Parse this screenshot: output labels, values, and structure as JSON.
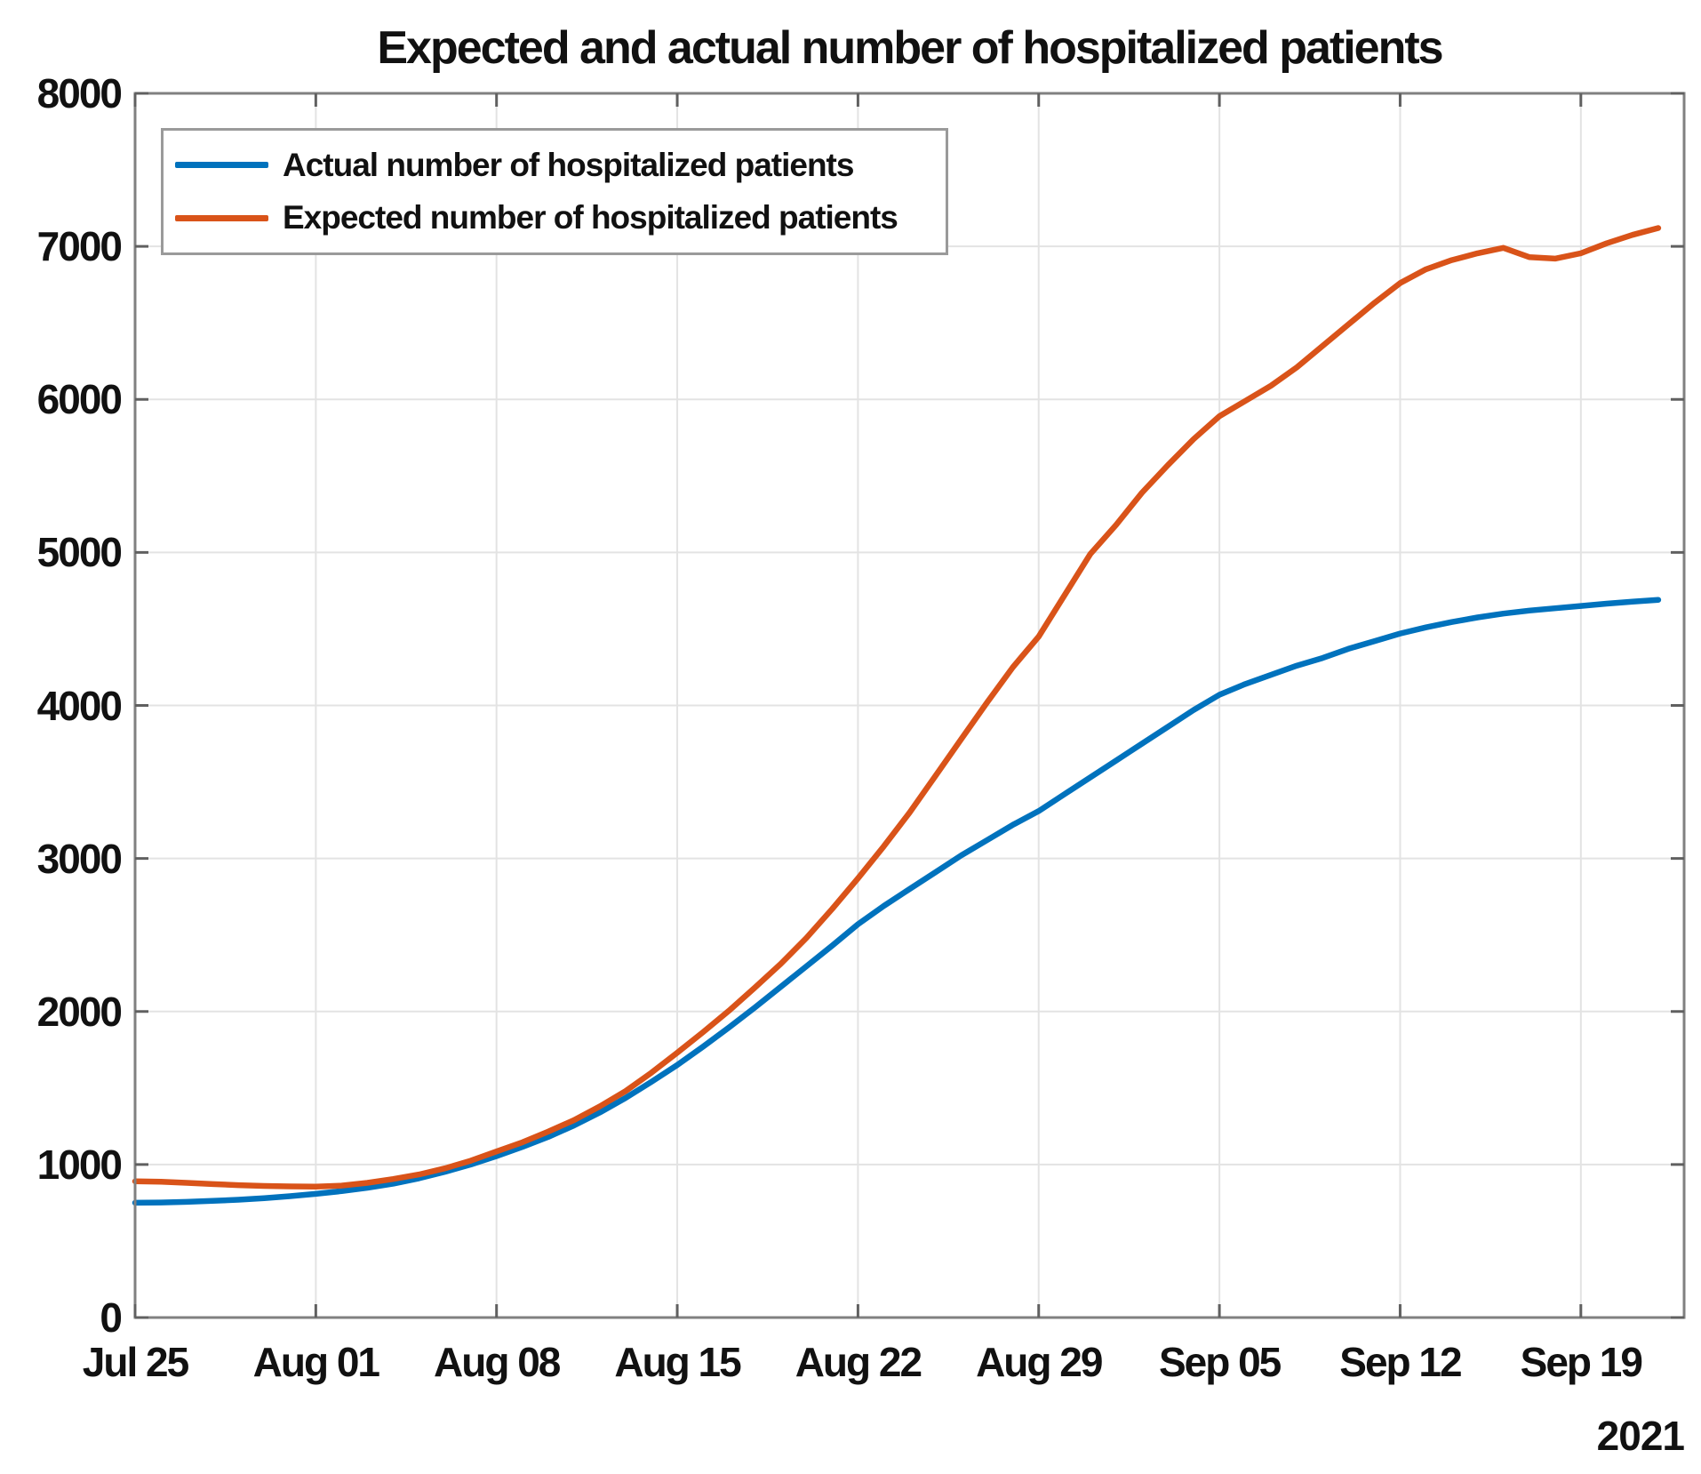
{
  "chart_data": {
    "type": "line",
    "title": "Expected and actual number of hospitalized patients",
    "grid": true,
    "legend": {
      "position": "top-left"
    },
    "x_axis": {
      "tick_labels": [
        "Jul 25",
        "Aug 01",
        "Aug 08",
        "Aug 15",
        "Aug 22",
        "Aug 29",
        "Sep 05",
        "Sep 12",
        "Sep 19"
      ],
      "tick_days": [
        0,
        7,
        14,
        21,
        28,
        35,
        42,
        49,
        56
      ],
      "year_label": "2021",
      "start_date": "Jul 25, 2021",
      "interval": "daily",
      "domain_days": [
        0,
        60
      ]
    },
    "y_axis": {
      "tick_labels": [
        "0",
        "1000",
        "2000",
        "3000",
        "4000",
        "5000",
        "6000",
        "7000",
        "8000"
      ],
      "tick_values": [
        0,
        1000,
        2000,
        3000,
        4000,
        5000,
        6000,
        7000,
        8000
      ],
      "ylim": [
        0,
        8000
      ]
    },
    "colors": {
      "actual": "#0072BD",
      "expected": "#D95319",
      "grid": "#e3e3e3",
      "axis": "#808080",
      "tick": "#606060"
    },
    "series": [
      {
        "name": "Actual number of hospitalized patients",
        "color": "#0072BD",
        "values": [
          750,
          752,
          756,
          762,
          770,
          780,
          793,
          808,
          826,
          848,
          875,
          910,
          952,
          1000,
          1055,
          1115,
          1180,
          1255,
          1340,
          1435,
          1540,
          1650,
          1770,
          1895,
          2025,
          2160,
          2295,
          2430,
          2570,
          2690,
          2800,
          2910,
          3020,
          3120,
          3220,
          3310,
          3420,
          3530,
          3640,
          3750,
          3860,
          3970,
          4070,
          4140,
          4200,
          4260,
          4310,
          4370,
          4420,
          4470,
          4510,
          4545,
          4575,
          4600,
          4620,
          4635,
          4650,
          4665,
          4678,
          4690
        ]
      },
      {
        "name": "Expected number of hospitalized patients",
        "color": "#D95319",
        "values": [
          890,
          887,
          880,
          872,
          865,
          860,
          857,
          855,
          862,
          880,
          905,
          935,
          975,
          1025,
          1085,
          1145,
          1215,
          1290,
          1380,
          1480,
          1600,
          1730,
          1865,
          2005,
          2155,
          2310,
          2480,
          2670,
          2870,
          3080,
          3300,
          3540,
          3780,
          4020,
          4250,
          4450,
          4720,
          4990,
          5180,
          5390,
          5570,
          5740,
          5890,
          5990,
          6090,
          6210,
          6350,
          6490,
          6630,
          6760,
          6850,
          6910,
          6955,
          6990,
          6930,
          6920,
          6955,
          7020,
          7075,
          7120
        ]
      }
    ]
  }
}
